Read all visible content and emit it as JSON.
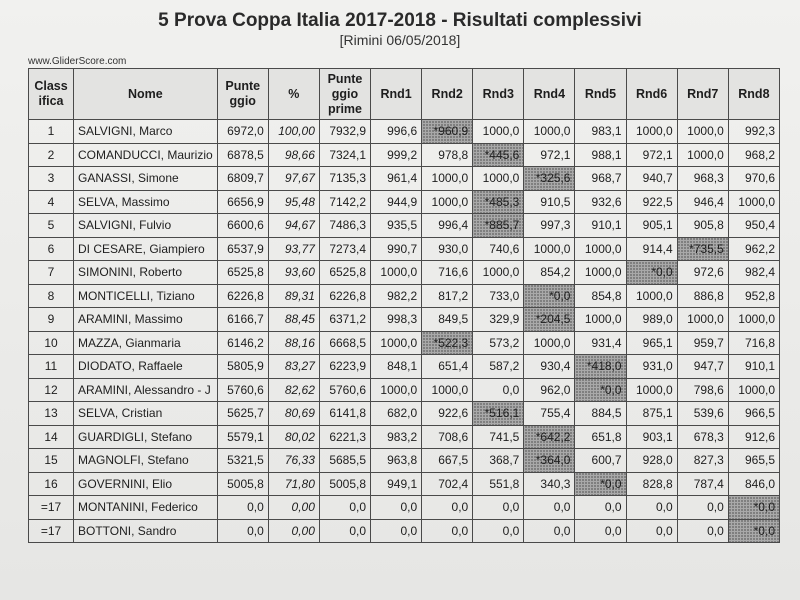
{
  "header": {
    "title": "5 Prova Coppa Italia 2017-2018 - Risultati complessivi",
    "subtitle": "[Rimini 06/05/2018]",
    "site": "www.GliderScore.com"
  },
  "table": {
    "columns": [
      {
        "key": "pos",
        "label": "Class\nifica"
      },
      {
        "key": "name",
        "label": "Nome"
      },
      {
        "key": "points",
        "label": "Punte\nggio"
      },
      {
        "key": "pct",
        "label": "%"
      },
      {
        "key": "raw",
        "label": "Punte\nggio\nprime"
      },
      {
        "key": "r1",
        "label": "Rnd1"
      },
      {
        "key": "r2",
        "label": "Rnd2"
      },
      {
        "key": "r3",
        "label": "Rnd3"
      },
      {
        "key": "r4",
        "label": "Rnd4"
      },
      {
        "key": "r5",
        "label": "Rnd5"
      },
      {
        "key": "r6",
        "label": "Rnd6"
      },
      {
        "key": "r7",
        "label": "Rnd7"
      },
      {
        "key": "r8",
        "label": "Rnd8"
      }
    ],
    "rows": [
      {
        "pos": "1",
        "name": "SALVIGNI, Marco",
        "points": "6972,0",
        "pct": "100,00",
        "raw": "7932,9",
        "rounds": [
          "996,6",
          "*960,9",
          "1000,0",
          "1000,0",
          "983,1",
          "1000,0",
          "1000,0",
          "992,3"
        ],
        "discard": 1
      },
      {
        "pos": "2",
        "name": "COMANDUCCI, Maurizio",
        "points": "6878,5",
        "pct": "98,66",
        "raw": "7324,1",
        "rounds": [
          "999,2",
          "978,8",
          "*445,6",
          "972,1",
          "988,1",
          "972,1",
          "1000,0",
          "968,2"
        ],
        "discard": 2
      },
      {
        "pos": "3",
        "name": "GANASSI, Simone",
        "points": "6809,7",
        "pct": "97,67",
        "raw": "7135,3",
        "rounds": [
          "961,4",
          "1000,0",
          "1000,0",
          "*325,6",
          "968,7",
          "940,7",
          "968,3",
          "970,6"
        ],
        "discard": 3
      },
      {
        "pos": "4",
        "name": "SELVA, Massimo",
        "points": "6656,9",
        "pct": "95,48",
        "raw": "7142,2",
        "rounds": [
          "944,9",
          "1000,0",
          "*485,3",
          "910,5",
          "932,6",
          "922,5",
          "946,4",
          "1000,0"
        ],
        "discard": 2
      },
      {
        "pos": "5",
        "name": "SALVIGNI, Fulvio",
        "points": "6600,6",
        "pct": "94,67",
        "raw": "7486,3",
        "rounds": [
          "935,5",
          "996,4",
          "*885,7",
          "997,3",
          "910,1",
          "905,1",
          "905,8",
          "950,4"
        ],
        "discard": 2
      },
      {
        "pos": "6",
        "name": "DI CESARE, Giampiero",
        "points": "6537,9",
        "pct": "93,77",
        "raw": "7273,4",
        "rounds": [
          "990,7",
          "930,0",
          "740,6",
          "1000,0",
          "1000,0",
          "914,4",
          "*735,5",
          "962,2"
        ],
        "discard": 6
      },
      {
        "pos": "7",
        "name": "SIMONINI, Roberto",
        "points": "6525,8",
        "pct": "93,60",
        "raw": "6525,8",
        "rounds": [
          "1000,0",
          "716,6",
          "1000,0",
          "854,2",
          "1000,0",
          "*0,0",
          "972,6",
          "982,4"
        ],
        "discard": 5
      },
      {
        "pos": "8",
        "name": "MONTICELLI, Tiziano",
        "points": "6226,8",
        "pct": "89,31",
        "raw": "6226,8",
        "rounds": [
          "982,2",
          "817,2",
          "733,0",
          "*0,0",
          "854,8",
          "1000,0",
          "886,8",
          "952,8"
        ],
        "discard": 3
      },
      {
        "pos": "9",
        "name": "ARAMINI, Massimo",
        "points": "6166,7",
        "pct": "88,45",
        "raw": "6371,2",
        "rounds": [
          "998,3",
          "849,5",
          "329,9",
          "*204,5",
          "1000,0",
          "989,0",
          "1000,0",
          "1000,0"
        ],
        "discard": 3
      },
      {
        "pos": "10",
        "name": "MAZZA, Gianmaria",
        "points": "6146,2",
        "pct": "88,16",
        "raw": "6668,5",
        "rounds": [
          "1000,0",
          "*522,3",
          "573,2",
          "1000,0",
          "931,4",
          "965,1",
          "959,7",
          "716,8"
        ],
        "discard": 1
      },
      {
        "pos": "11",
        "name": "DIODATO, Raffaele",
        "points": "5805,9",
        "pct": "83,27",
        "raw": "6223,9",
        "rounds": [
          "848,1",
          "651,4",
          "587,2",
          "930,4",
          "*418,0",
          "931,0",
          "947,7",
          "910,1"
        ],
        "discard": 4
      },
      {
        "pos": "12",
        "name": "ARAMINI, Alessandro - J",
        "points": "5760,6",
        "pct": "82,62",
        "raw": "5760,6",
        "rounds": [
          "1000,0",
          "1000,0",
          "0,0",
          "962,0",
          "*0,0",
          "1000,0",
          "798,6",
          "1000,0"
        ],
        "discard": 4
      },
      {
        "pos": "13",
        "name": "SELVA, Cristian",
        "points": "5625,7",
        "pct": "80,69",
        "raw": "6141,8",
        "rounds": [
          "682,0",
          "922,6",
          "*516,1",
          "755,4",
          "884,5",
          "875,1",
          "539,6",
          "966,5"
        ],
        "discard": 2
      },
      {
        "pos": "14",
        "name": "GUARDIGLI, Stefano",
        "points": "5579,1",
        "pct": "80,02",
        "raw": "6221,3",
        "rounds": [
          "983,2",
          "708,6",
          "741,5",
          "*642,2",
          "651,8",
          "903,1",
          "678,3",
          "912,6"
        ],
        "discard": 3
      },
      {
        "pos": "15",
        "name": "MAGNOLFI, Stefano",
        "points": "5321,5",
        "pct": "76,33",
        "raw": "5685,5",
        "rounds": [
          "963,8",
          "667,5",
          "368,7",
          "*364,0",
          "600,7",
          "928,0",
          "827,3",
          "965,5"
        ],
        "discard": 3
      },
      {
        "pos": "16",
        "name": "GOVERNINI, Elio",
        "points": "5005,8",
        "pct": "71,80",
        "raw": "5005,8",
        "rounds": [
          "949,1",
          "702,4",
          "551,8",
          "340,3",
          "*0,0",
          "828,8",
          "787,4",
          "846,0"
        ],
        "discard": 4
      },
      {
        "pos": "=17",
        "name": "MONTANINI, Federico",
        "points": "0,0",
        "pct": "0,00",
        "raw": "0,0",
        "rounds": [
          "0,0",
          "0,0",
          "0,0",
          "0,0",
          "0,0",
          "0,0",
          "0,0",
          "*0,0"
        ],
        "discard": 7
      },
      {
        "pos": "=17",
        "name": "BOTTONI, Sandro",
        "points": "0,0",
        "pct": "0,00",
        "raw": "0,0",
        "rounds": [
          "0,0",
          "0,0",
          "0,0",
          "0,0",
          "0,0",
          "0,0",
          "0,0",
          "*0,0"
        ],
        "discard": 7
      }
    ]
  }
}
